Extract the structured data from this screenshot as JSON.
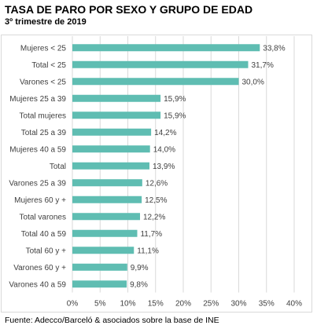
{
  "header": {
    "title": "TASA DE PARO POR SEXO Y GRUPO DE EDAD",
    "subtitle": "3º trimestre de 2019"
  },
  "footer": {
    "source": "Fuente: Adecco/Barceló & asociados sobre la base de INE"
  },
  "colors": {
    "bar": "#5fbdb2",
    "grid": "#d9d9d9",
    "text": "#404040"
  },
  "chart_data": {
    "type": "bar",
    "orientation": "horizontal",
    "title": "TASA DE PARO POR SEXO Y GRUPO DE EDAD",
    "subtitle": "3º trimestre de 2019",
    "categories": [
      "Mujeres < 25",
      "Total < 25",
      "Varones < 25",
      "Mujeres 25 a 39",
      "Total mujeres",
      "Total 25 a 39",
      "Mujeres 40 a 59",
      "Total",
      "Varones 25 a 39",
      "Mujeres 60 y +",
      "Total varones",
      "Total 40 a 59",
      "Total 60 y +",
      "Varones 60 y +",
      "Varones 40 a 59"
    ],
    "values": [
      33.8,
      31.7,
      30.0,
      15.9,
      15.9,
      14.2,
      14.0,
      13.9,
      12.6,
      12.5,
      12.2,
      11.7,
      11.1,
      9.9,
      9.8
    ],
    "value_labels": [
      "33,8%",
      "31,7%",
      "30,0%",
      "15,9%",
      "15,9%",
      "14,2%",
      "14,0%",
      "13,9%",
      "12,6%",
      "12,5%",
      "12,2%",
      "11,7%",
      "11,1%",
      "9,9%",
      "9,8%"
    ],
    "xlim": [
      0,
      40
    ],
    "xticks": [
      0,
      5,
      10,
      15,
      20,
      25,
      30,
      35,
      40
    ],
    "xtick_labels": [
      "0%",
      "5%",
      "10%",
      "15%",
      "20%",
      "25%",
      "30%",
      "35%",
      "40%"
    ],
    "grid": true,
    "legend": "none"
  }
}
